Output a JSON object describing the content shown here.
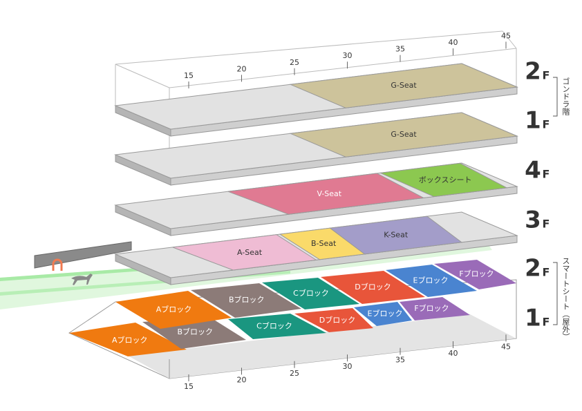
{
  "ruler_top": [
    15,
    20,
    25,
    30,
    35,
    40,
    45
  ],
  "ruler_bottom": [
    15,
    20,
    25,
    30,
    35,
    40,
    45
  ],
  "floors": [
    {
      "number": "2",
      "unit": "F"
    },
    {
      "number": "1",
      "unit": "F"
    },
    {
      "number": "4",
      "unit": "F"
    },
    {
      "number": "3",
      "unit": "F"
    },
    {
      "number": "2",
      "unit": "F"
    },
    {
      "number": "1",
      "unit": "F"
    }
  ],
  "groups": [
    "ゴンドラ階",
    "スマートシート（屋外）"
  ],
  "seats": {
    "gondola_2f": [
      "G-Seat"
    ],
    "gondola_1f": [
      "G-Seat"
    ],
    "floor_4f": [
      "V-Seat",
      "ボックスシート"
    ],
    "floor_3f": [
      "A-Seat",
      "B-Seat",
      "K-Seat"
    ],
    "smart_2f": [
      "Aブロック",
      "Bブロック",
      "Cブロック",
      "Dブロック",
      "Eブロック",
      "Fブロック"
    ],
    "smart_1f": [
      "Aブロック",
      "Bブロック",
      "Cブロック",
      "Dブロック",
      "Eブロック",
      "Fブロック"
    ]
  }
}
